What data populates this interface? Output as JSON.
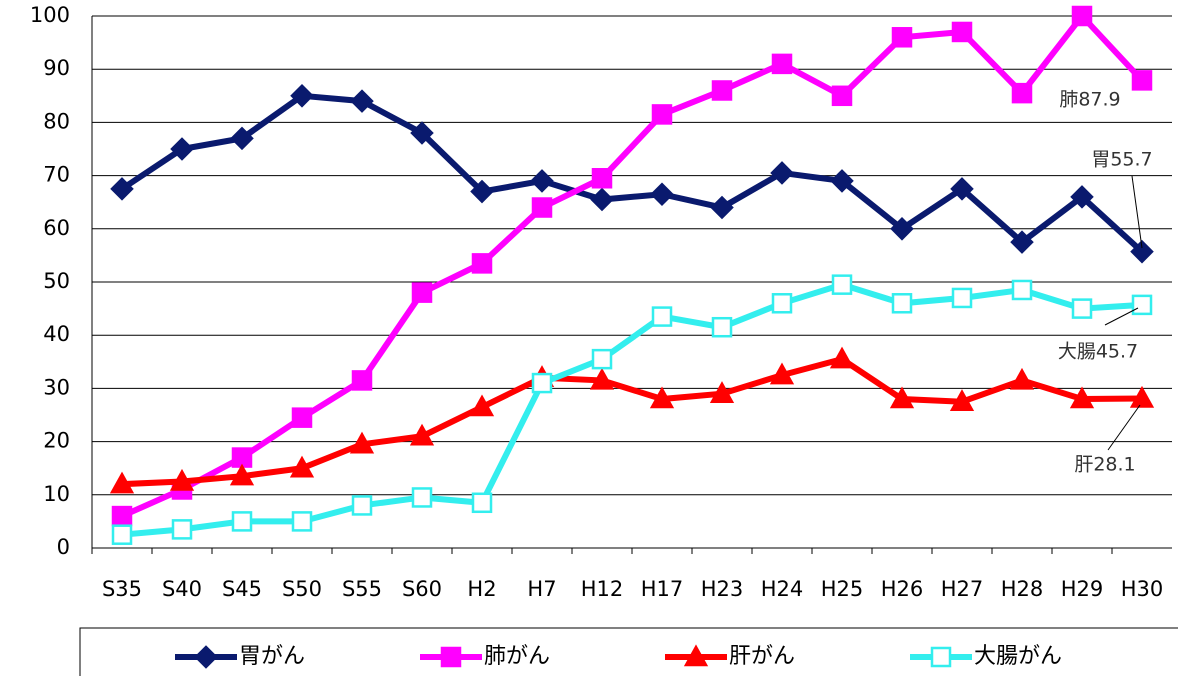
{
  "chart_data": {
    "type": "line",
    "categories": [
      "S35",
      "S40",
      "S45",
      "S50",
      "S55",
      "S60",
      "H2",
      "H7",
      "H12",
      "H17",
      "H23",
      "H24",
      "H25",
      "H26",
      "H27",
      "H28",
      "H29",
      "H30"
    ],
    "series": [
      {
        "name": "胃がん",
        "color": "#0a1a6e",
        "marker": "diamond",
        "values": [
          67.5,
          75,
          77,
          85,
          84,
          78,
          67,
          69,
          65.5,
          66.5,
          64,
          70.5,
          69,
          60,
          67.5,
          57.5,
          66,
          55.7
        ]
      },
      {
        "name": "肺がん",
        "color": "#ff00ff",
        "marker": "square",
        "values": [
          6,
          11,
          17,
          24.5,
          31.5,
          48,
          53.5,
          64,
          69.5,
          81.5,
          86,
          91,
          85,
          96,
          97,
          85.5,
          100,
          87.9
        ]
      },
      {
        "name": "肝がん",
        "color": "#ff0000",
        "marker": "triangle",
        "values": [
          12,
          12.5,
          13.5,
          15,
          19.5,
          21,
          26.5,
          32,
          31.5,
          28,
          29,
          32.5,
          35.5,
          28,
          27.5,
          31.5,
          28,
          28.1
        ]
      },
      {
        "name": "大腸がん",
        "color": "#33eeee",
        "marker": "hollow-square",
        "values": [
          2.5,
          3.5,
          5,
          5,
          8,
          9.5,
          8.5,
          31,
          35.5,
          43.5,
          41.5,
          46,
          49.5,
          46,
          47,
          48.5,
          45,
          45.7
        ]
      }
    ],
    "annotations": [
      "肺87.9",
      "胃55.7",
      "大腸45.7",
      "肝28.1"
    ],
    "ylim": [
      0,
      100
    ],
    "yticks": [
      0,
      10,
      20,
      30,
      40,
      50,
      60,
      70,
      80,
      90,
      100
    ],
    "grid": true,
    "legend": "bottom"
  }
}
